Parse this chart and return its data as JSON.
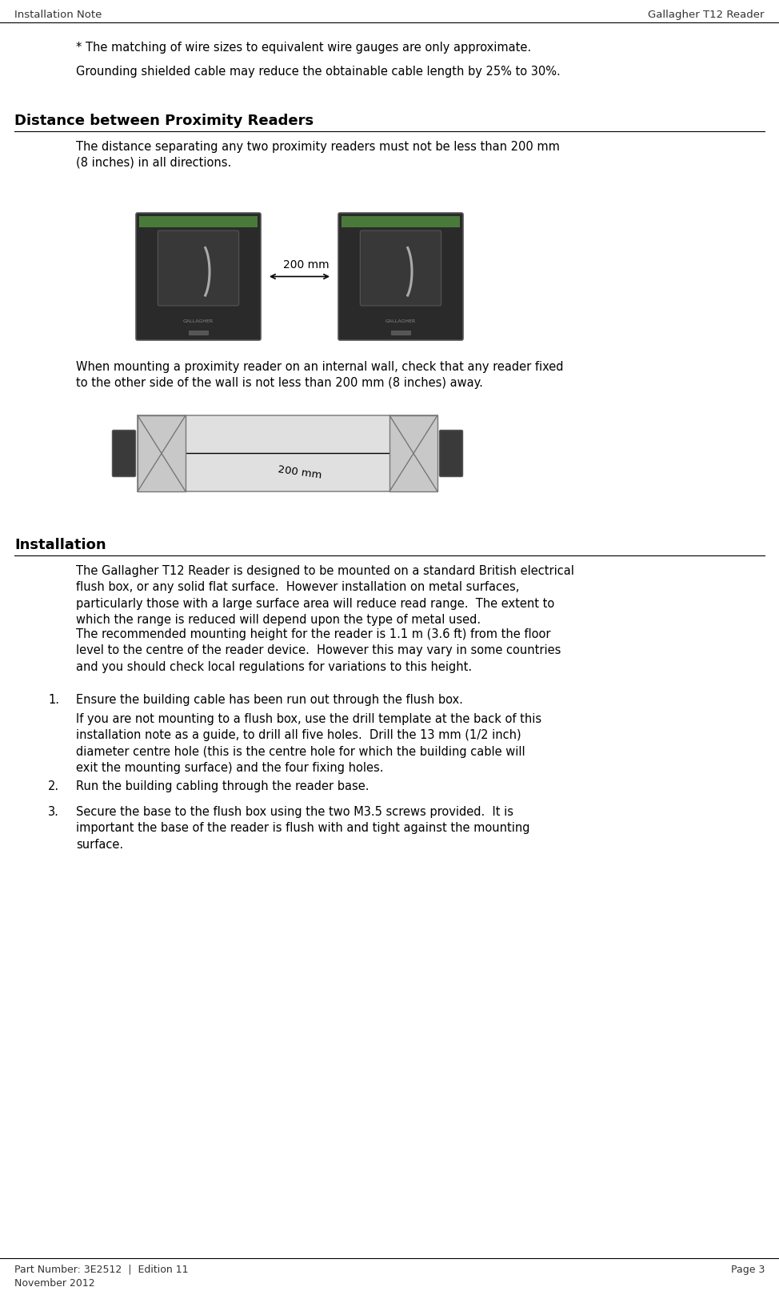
{
  "header_left": "Installation Note",
  "header_right": "Gallagher T12 Reader",
  "footer_left1": "Part Number: 3E2512  |  Edition 11",
  "footer_left2": "November 2012",
  "footer_right": "Page 3",
  "bg_color": "#ffffff",
  "text_color": "#000000",
  "section1_heading": "Distance between Proximity Readers",
  "section1_para1": "The distance separating any two proximity readers must not be less than 200 mm\n(8 inches) in all directions.",
  "section1_para2": "When mounting a proximity reader on an internal wall, check that any reader fixed\nto the other side of the wall is not less than 200 mm (8 inches) away.",
  "section2_heading": "Installation",
  "section2_para1": "The Gallagher T12 Reader is designed to be mounted on a standard British electrical\nflush box, or any solid flat surface.  However installation on metal surfaces,\nparticularly those with a large surface area will reduce read range.  The extent to\nwhich the range is reduced will depend upon the type of metal used.",
  "section2_para2": "The recommended mounting height for the reader is 1.1 m (3.6 ft) from the floor\nlevel to the centre of the reader device.  However this may vary in some countries\nand you should check local regulations for variations to this height.",
  "item1_num": "1.",
  "item1_text": "Ensure the building cable has been run out through the flush box.",
  "item1_sub": "If you are not mounting to a flush box, use the drill template at the back of this\ninstallation note as a guide, to drill all five holes.  Drill the 13 mm (1/2 inch)\ndiameter centre hole (this is the centre hole for which the building cable will\nexit the mounting surface) and the four fixing holes.",
  "item2_num": "2.",
  "item2_text": "Run the building cabling through the reader base.",
  "item3_num": "3.",
  "item3_text": "Secure the base to the flush box using the two M3.5 screws provided.  It is\nimportant the base of the reader is flush with and tight against the mounting\nsurface.",
  "note1": "* The matching of wire sizes to equivalent wire gauges are only approximate.",
  "note2": "Grounding shielded cable may reduce the obtainable cable length by 25% to 30%.",
  "reader_dark": "#2a2a2a",
  "reader_border": "#555555",
  "reader_green": "#4a7a3a",
  "distance_label": "200 mm",
  "distance_label2": "200 mm"
}
